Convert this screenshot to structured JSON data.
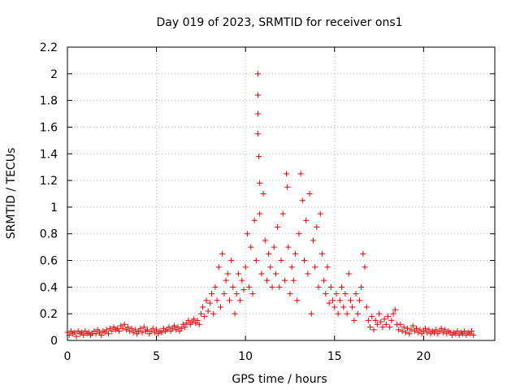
{
  "chart_data": {
    "type": "scatter",
    "title": "Day 019 of 2023, SRMTID for receiver ons1",
    "xlabel": "GPS time / hours",
    "ylabel": "SRMTID / TECUs",
    "xlim": [
      0,
      24
    ],
    "ylim": [
      0,
      2.2
    ],
    "grid": true,
    "marker": "+",
    "series_color": "#ee0000",
    "x_ticks": [
      0,
      5,
      10,
      15,
      20
    ],
    "x_tick_labels": [
      "0",
      "5",
      "10",
      "15",
      "20"
    ],
    "y_ticks": [
      0,
      0.2,
      0.4,
      0.6,
      0.8,
      1.0,
      1.2,
      1.4,
      1.6,
      1.8,
      2.0,
      2.2
    ],
    "y_tick_labels": [
      "0",
      "0.2",
      "0.4",
      "0.6",
      "0.8",
      "1",
      "1.2",
      "1.4",
      "1.6",
      "1.8",
      "2",
      "2.2"
    ],
    "series": [
      {
        "name": "SRMTID",
        "points": [
          [
            0.0,
            0.06
          ],
          [
            0.1,
            0.04
          ],
          [
            0.2,
            0.07
          ],
          [
            0.3,
            0.05
          ],
          [
            0.4,
            0.06
          ],
          [
            0.5,
            0.03
          ],
          [
            0.6,
            0.07
          ],
          [
            0.7,
            0.05
          ],
          [
            0.8,
            0.06
          ],
          [
            0.9,
            0.04
          ],
          [
            1.0,
            0.07
          ],
          [
            1.1,
            0.05
          ],
          [
            1.2,
            0.06
          ],
          [
            1.3,
            0.04
          ],
          [
            1.4,
            0.05
          ],
          [
            1.5,
            0.07
          ],
          [
            1.6,
            0.05
          ],
          [
            1.7,
            0.08
          ],
          [
            1.8,
            0.06
          ],
          [
            1.9,
            0.04
          ],
          [
            2.0,
            0.07
          ],
          [
            2.1,
            0.06
          ],
          [
            2.2,
            0.08
          ],
          [
            2.3,
            0.05
          ],
          [
            2.4,
            0.09
          ],
          [
            2.5,
            0.07
          ],
          [
            2.6,
            0.1
          ],
          [
            2.7,
            0.08
          ],
          [
            2.8,
            0.09
          ],
          [
            2.9,
            0.07
          ],
          [
            3.0,
            0.11
          ],
          [
            3.1,
            0.09
          ],
          [
            3.2,
            0.12
          ],
          [
            3.3,
            0.08
          ],
          [
            3.4,
            0.1
          ],
          [
            3.5,
            0.07
          ],
          [
            3.6,
            0.09
          ],
          [
            3.7,
            0.06
          ],
          [
            3.8,
            0.08
          ],
          [
            3.9,
            0.05
          ],
          [
            4.0,
            0.07
          ],
          [
            4.1,
            0.09
          ],
          [
            4.2,
            0.06
          ],
          [
            4.3,
            0.1
          ],
          [
            4.4,
            0.07
          ],
          [
            4.5,
            0.08
          ],
          [
            4.6,
            0.05
          ],
          [
            4.7,
            0.07
          ],
          [
            4.8,
            0.09
          ],
          [
            4.9,
            0.06
          ],
          [
            5.0,
            0.08
          ],
          [
            5.1,
            0.05
          ],
          [
            5.2,
            0.07
          ],
          [
            5.3,
            0.06
          ],
          [
            5.4,
            0.09
          ],
          [
            5.5,
            0.07
          ],
          [
            5.6,
            0.08
          ],
          [
            5.7,
            0.1
          ],
          [
            5.8,
            0.07
          ],
          [
            5.9,
            0.09
          ],
          [
            6.0,
            0.11
          ],
          [
            6.1,
            0.08
          ],
          [
            6.2,
            0.1
          ],
          [
            6.3,
            0.07
          ],
          [
            6.4,
            0.09
          ],
          [
            6.5,
            0.12
          ],
          [
            6.6,
            0.1
          ],
          [
            6.7,
            0.13
          ],
          [
            6.8,
            0.15
          ],
          [
            6.9,
            0.12
          ],
          [
            7.0,
            0.14
          ],
          [
            7.1,
            0.16
          ],
          [
            7.2,
            0.13
          ],
          [
            7.3,
            0.15
          ],
          [
            7.4,
            0.12
          ],
          [
            7.5,
            0.2
          ],
          [
            7.6,
            0.25
          ],
          [
            7.7,
            0.18
          ],
          [
            7.8,
            0.3
          ],
          [
            7.9,
            0.22
          ],
          [
            8.0,
            0.28
          ],
          [
            8.1,
            0.35
          ],
          [
            8.2,
            0.2
          ],
          [
            8.3,
            0.4
          ],
          [
            8.4,
            0.3
          ],
          [
            8.5,
            0.55
          ],
          [
            8.6,
            0.25
          ],
          [
            8.7,
            0.65
          ],
          [
            8.8,
            0.35
          ],
          [
            8.9,
            0.45
          ],
          [
            9.0,
            0.5
          ],
          [
            9.1,
            0.3
          ],
          [
            9.2,
            0.6
          ],
          [
            9.3,
            0.4
          ],
          [
            9.4,
            0.2
          ],
          [
            9.5,
            0.35
          ],
          [
            9.6,
            0.5
          ],
          [
            9.7,
            0.3
          ],
          [
            9.8,
            0.45
          ],
          [
            9.9,
            0.38
          ],
          [
            10.0,
            0.55
          ],
          [
            10.1,
            0.8
          ],
          [
            10.2,
            0.4
          ],
          [
            10.3,
            0.7
          ],
          [
            10.4,
            0.35
          ],
          [
            10.5,
            0.9
          ],
          [
            10.6,
            0.6
          ],
          [
            10.7,
            2.0
          ],
          [
            10.7,
            1.84
          ],
          [
            10.7,
            1.7
          ],
          [
            10.7,
            1.55
          ],
          [
            10.75,
            1.38
          ],
          [
            10.8,
            1.18
          ],
          [
            10.8,
            0.95
          ],
          [
            10.9,
            0.5
          ],
          [
            11.0,
            1.1
          ],
          [
            11.1,
            0.75
          ],
          [
            11.2,
            0.45
          ],
          [
            11.3,
            0.65
          ],
          [
            11.4,
            0.55
          ],
          [
            11.5,
            0.4
          ],
          [
            11.6,
            0.7
          ],
          [
            11.7,
            0.5
          ],
          [
            11.8,
            0.85
          ],
          [
            11.9,
            0.4
          ],
          [
            12.0,
            0.6
          ],
          [
            12.1,
            0.95
          ],
          [
            12.2,
            0.45
          ],
          [
            12.3,
            1.25
          ],
          [
            12.35,
            1.15
          ],
          [
            12.4,
            0.7
          ],
          [
            12.5,
            0.35
          ],
          [
            12.6,
            0.55
          ],
          [
            12.7,
            0.45
          ],
          [
            12.8,
            0.65
          ],
          [
            12.9,
            0.3
          ],
          [
            13.0,
            0.8
          ],
          [
            13.1,
            1.25
          ],
          [
            13.2,
            1.05
          ],
          [
            13.3,
            0.6
          ],
          [
            13.4,
            0.9
          ],
          [
            13.5,
            0.5
          ],
          [
            13.6,
            1.1
          ],
          [
            13.7,
            0.2
          ],
          [
            13.8,
            0.75
          ],
          [
            13.9,
            0.55
          ],
          [
            14.0,
            0.85
          ],
          [
            14.1,
            0.4
          ],
          [
            14.2,
            0.95
          ],
          [
            14.3,
            0.65
          ],
          [
            14.4,
            0.45
          ],
          [
            14.5,
            0.35
          ],
          [
            14.6,
            0.55
          ],
          [
            14.7,
            0.28
          ],
          [
            14.8,
            0.4
          ],
          [
            14.9,
            0.3
          ],
          [
            15.0,
            0.25
          ],
          [
            15.1,
            0.35
          ],
          [
            15.2,
            0.2
          ],
          [
            15.3,
            0.3
          ],
          [
            15.4,
            0.4
          ],
          [
            15.5,
            0.25
          ],
          [
            15.6,
            0.35
          ],
          [
            15.7,
            0.2
          ],
          [
            15.8,
            0.5
          ],
          [
            15.9,
            0.3
          ],
          [
            16.0,
            0.25
          ],
          [
            16.1,
            0.15
          ],
          [
            16.2,
            0.35
          ],
          [
            16.3,
            0.2
          ],
          [
            16.4,
            0.3
          ],
          [
            16.5,
            0.4
          ],
          [
            16.6,
            0.65
          ],
          [
            16.7,
            0.55
          ],
          [
            16.8,
            0.25
          ],
          [
            16.9,
            0.15
          ],
          [
            17.0,
            0.1
          ],
          [
            17.1,
            0.18
          ],
          [
            17.2,
            0.08
          ],
          [
            17.3,
            0.15
          ],
          [
            17.4,
            0.12
          ],
          [
            17.5,
            0.2
          ],
          [
            17.6,
            0.14
          ],
          [
            17.7,
            0.1
          ],
          [
            17.8,
            0.16
          ],
          [
            17.9,
            0.12
          ],
          [
            18.0,
            0.18
          ],
          [
            18.1,
            0.1
          ],
          [
            18.2,
            0.15
          ],
          [
            18.3,
            0.2
          ],
          [
            18.4,
            0.23
          ],
          [
            18.5,
            0.12
          ],
          [
            18.6,
            0.08
          ],
          [
            18.7,
            0.12
          ],
          [
            18.8,
            0.07
          ],
          [
            18.9,
            0.1
          ],
          [
            19.0,
            0.06
          ],
          [
            19.1,
            0.09
          ],
          [
            19.2,
            0.05
          ],
          [
            19.3,
            0.08
          ],
          [
            19.4,
            0.11
          ],
          [
            19.5,
            0.07
          ],
          [
            19.6,
            0.09
          ],
          [
            19.7,
            0.06
          ],
          [
            19.8,
            0.08
          ],
          [
            19.9,
            0.05
          ],
          [
            20.0,
            0.07
          ],
          [
            20.1,
            0.09
          ],
          [
            20.2,
            0.06
          ],
          [
            20.3,
            0.08
          ],
          [
            20.4,
            0.05
          ],
          [
            20.5,
            0.07
          ],
          [
            20.6,
            0.06
          ],
          [
            20.7,
            0.08
          ],
          [
            20.8,
            0.05
          ],
          [
            20.9,
            0.07
          ],
          [
            21.0,
            0.09
          ],
          [
            21.1,
            0.06
          ],
          [
            21.2,
            0.08
          ],
          [
            21.3,
            0.05
          ],
          [
            21.4,
            0.07
          ],
          [
            21.5,
            0.06
          ],
          [
            21.6,
            0.04
          ],
          [
            21.7,
            0.06
          ],
          [
            21.8,
            0.05
          ],
          [
            21.9,
            0.07
          ],
          [
            22.0,
            0.04
          ],
          [
            22.1,
            0.06
          ],
          [
            22.2,
            0.05
          ],
          [
            22.3,
            0.07
          ],
          [
            22.4,
            0.04
          ],
          [
            22.5,
            0.06
          ],
          [
            22.6,
            0.05
          ],
          [
            22.7,
            0.07
          ],
          [
            22.8,
            0.04
          ]
        ]
      }
    ]
  }
}
